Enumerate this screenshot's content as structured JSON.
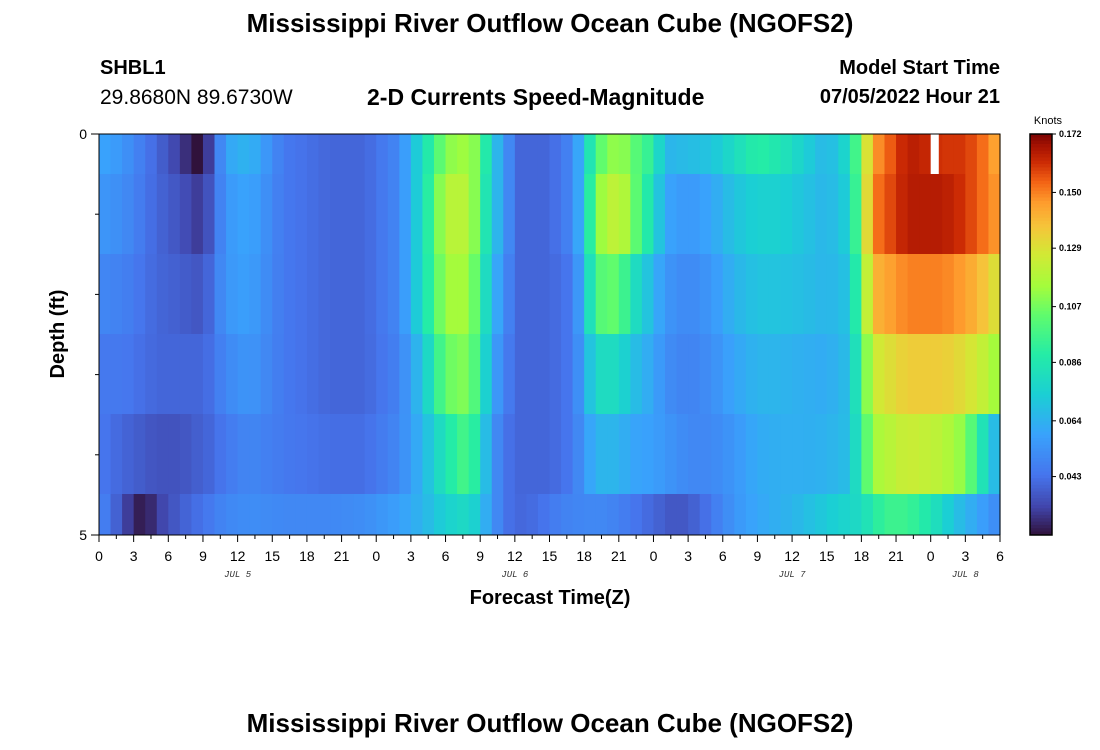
{
  "header": {
    "title": "Mississippi River Outflow Ocean Cube (NGOFS2)",
    "station_name": "SHBL1",
    "station_coords": "29.8680N  89.6730W",
    "subtitle": "2-D Currents Speed-Magnitude",
    "model_label": "Model Start Time",
    "model_datetime": "07/05/2022 Hour 21"
  },
  "footer": {
    "title": "Mississippi River Outflow Ocean Cube (NGOFS2)"
  },
  "colors": {
    "background": "#ffffff",
    "missing": "#ffffff",
    "axis": "#000000"
  },
  "chart_data": {
    "type": "heatmap",
    "title": "2-D Currents Speed-Magnitude",
    "xlabel": "Forecast Time(Z)",
    "ylabel": "Depth (ft)",
    "x_unit": "hours since JUL 5 00Z",
    "x_range": [
      0,
      78
    ],
    "y_range": [
      0,
      5
    ],
    "y_ticks": [
      "0",
      "5"
    ],
    "x_tick_labels": [
      "0",
      "3",
      "6",
      "9",
      "12",
      "15",
      "18",
      "21",
      "0",
      "3",
      "6",
      "9",
      "12",
      "15",
      "18",
      "21",
      "0",
      "3",
      "6",
      "9",
      "12",
      "15",
      "18",
      "21",
      "0",
      "3",
      "6"
    ],
    "day_labels": [
      {
        "label": "JUL 5",
        "hour": 12
      },
      {
        "label": "JUL 6",
        "hour": 36
      },
      {
        "label": "JUL 7",
        "hour": 60
      },
      {
        "label": "JUL 8",
        "hour": 75
      }
    ],
    "depth_layers": [
      "0-0.5",
      "0.5-1.5",
      "1.5-2.5",
      "2.5-3.5",
      "3.5-4.5",
      "4.5-5"
    ],
    "colorbar": {
      "unit": "Knots",
      "min": 0.021,
      "max": 0.172,
      "tick_labels": [
        "0.172",
        "0.150",
        "0.129",
        "0.107",
        "0.086",
        "0.064",
        "0.043"
      ]
    },
    "missing_value_note": "blank cell near JUL 8 00Z at surface",
    "speed_keyframes_by_layer": [
      {
        "layer": "0-0.5",
        "points": [
          [
            0,
            0.06
          ],
          [
            2,
            0.055
          ],
          [
            5,
            0.04
          ],
          [
            7,
            0.03
          ],
          [
            8.5,
            0.021
          ],
          [
            9.5,
            0.03
          ],
          [
            11,
            0.06
          ],
          [
            13,
            0.065
          ],
          [
            16,
            0.045
          ],
          [
            20,
            0.04
          ],
          [
            23,
            0.04
          ],
          [
            26,
            0.05
          ],
          [
            28,
            0.08
          ],
          [
            30,
            0.11
          ],
          [
            32,
            0.115
          ],
          [
            33,
            0.105
          ],
          [
            34,
            0.07
          ],
          [
            35,
            0.06
          ],
          [
            36,
            0.04
          ],
          [
            39,
            0.04
          ],
          [
            41,
            0.05
          ],
          [
            42,
            0.07
          ],
          [
            43,
            0.1
          ],
          [
            45,
            0.115
          ],
          [
            46,
            0.105
          ],
          [
            48,
            0.09
          ],
          [
            49,
            0.065
          ],
          [
            53,
            0.07
          ],
          [
            55,
            0.08
          ],
          [
            57,
            0.09
          ],
          [
            59,
            0.085
          ],
          [
            61,
            0.075
          ],
          [
            63,
            0.065
          ],
          [
            65,
            0.08
          ],
          [
            67,
            0.145
          ],
          [
            70,
            0.165
          ],
          [
            73,
            0.16
          ],
          [
            75,
            0.16
          ],
          [
            77,
            0.15
          ],
          [
            78,
            0.14
          ]
        ]
      },
      {
        "layer": "0.5-1.5",
        "points": [
          [
            0,
            0.055
          ],
          [
            2,
            0.052
          ],
          [
            5,
            0.04
          ],
          [
            7,
            0.035
          ],
          [
            8.5,
            0.03
          ],
          [
            9.5,
            0.035
          ],
          [
            11,
            0.055
          ],
          [
            13,
            0.06
          ],
          [
            16,
            0.045
          ],
          [
            20,
            0.04
          ],
          [
            23,
            0.04
          ],
          [
            26,
            0.05
          ],
          [
            28,
            0.08
          ],
          [
            30,
            0.12
          ],
          [
            32,
            0.12
          ],
          [
            33,
            0.1
          ],
          [
            34,
            0.07
          ],
          [
            35,
            0.06
          ],
          [
            36,
            0.04
          ],
          [
            39,
            0.04
          ],
          [
            41,
            0.05
          ],
          [
            42,
            0.07
          ],
          [
            43,
            0.11
          ],
          [
            45,
            0.125
          ],
          [
            46,
            0.11
          ],
          [
            48,
            0.08
          ],
          [
            49,
            0.06
          ],
          [
            51,
            0.055
          ],
          [
            53,
            0.06
          ],
          [
            55,
            0.07
          ],
          [
            57,
            0.075
          ],
          [
            59,
            0.075
          ],
          [
            61,
            0.07
          ],
          [
            63,
            0.065
          ],
          [
            65,
            0.075
          ],
          [
            67,
            0.15
          ],
          [
            70,
            0.165
          ],
          [
            73,
            0.165
          ],
          [
            75,
            0.16
          ],
          [
            77,
            0.15
          ],
          [
            78,
            0.145
          ]
        ]
      },
      {
        "layer": "1.5-2.5",
        "points": [
          [
            0,
            0.05
          ],
          [
            2,
            0.048
          ],
          [
            5,
            0.04
          ],
          [
            7,
            0.038
          ],
          [
            8.5,
            0.036
          ],
          [
            9.5,
            0.04
          ],
          [
            11,
            0.055
          ],
          [
            13,
            0.058
          ],
          [
            16,
            0.045
          ],
          [
            20,
            0.04
          ],
          [
            23,
            0.04
          ],
          [
            26,
            0.05
          ],
          [
            28,
            0.08
          ],
          [
            30,
            0.115
          ],
          [
            32,
            0.115
          ],
          [
            33,
            0.095
          ],
          [
            34,
            0.065
          ],
          [
            35,
            0.055
          ],
          [
            36,
            0.04
          ],
          [
            39,
            0.04
          ],
          [
            41,
            0.045
          ],
          [
            42,
            0.065
          ],
          [
            43,
            0.1
          ],
          [
            45,
            0.105
          ],
          [
            46,
            0.085
          ],
          [
            48,
            0.065
          ],
          [
            49,
            0.055
          ],
          [
            51,
            0.05
          ],
          [
            53,
            0.055
          ],
          [
            55,
            0.065
          ],
          [
            57,
            0.07
          ],
          [
            59,
            0.07
          ],
          [
            61,
            0.068
          ],
          [
            63,
            0.065
          ],
          [
            65,
            0.07
          ],
          [
            67,
            0.14
          ],
          [
            70,
            0.15
          ],
          [
            73,
            0.15
          ],
          [
            75,
            0.145
          ],
          [
            77,
            0.135
          ],
          [
            78,
            0.125
          ]
        ]
      },
      {
        "layer": "2.5-3.5",
        "points": [
          [
            0,
            0.045
          ],
          [
            2,
            0.045
          ],
          [
            5,
            0.04
          ],
          [
            7,
            0.04
          ],
          [
            8.5,
            0.04
          ],
          [
            9.5,
            0.042
          ],
          [
            11,
            0.05
          ],
          [
            13,
            0.055
          ],
          [
            16,
            0.045
          ],
          [
            20,
            0.04
          ],
          [
            23,
            0.04
          ],
          [
            26,
            0.048
          ],
          [
            28,
            0.07
          ],
          [
            30,
            0.105
          ],
          [
            32,
            0.11
          ],
          [
            33,
            0.09
          ],
          [
            34,
            0.06
          ],
          [
            35,
            0.05
          ],
          [
            36,
            0.04
          ],
          [
            39,
            0.04
          ],
          [
            41,
            0.045
          ],
          [
            42,
            0.06
          ],
          [
            43,
            0.08
          ],
          [
            45,
            0.08
          ],
          [
            46,
            0.07
          ],
          [
            48,
            0.06
          ],
          [
            49,
            0.052
          ],
          [
            51,
            0.048
          ],
          [
            53,
            0.052
          ],
          [
            55,
            0.06
          ],
          [
            57,
            0.065
          ],
          [
            59,
            0.065
          ],
          [
            61,
            0.063
          ],
          [
            63,
            0.062
          ],
          [
            65,
            0.068
          ],
          [
            67,
            0.125
          ],
          [
            70,
            0.135
          ],
          [
            73,
            0.135
          ],
          [
            75,
            0.13
          ],
          [
            77,
            0.12
          ],
          [
            78,
            0.11
          ]
        ]
      },
      {
        "layer": "3.5-4.5",
        "points": [
          [
            0,
            0.045
          ],
          [
            2,
            0.04
          ],
          [
            5,
            0.035
          ],
          [
            7,
            0.035
          ],
          [
            8.5,
            0.038
          ],
          [
            9.5,
            0.04
          ],
          [
            11,
            0.045
          ],
          [
            13,
            0.05
          ],
          [
            16,
            0.045
          ],
          [
            20,
            0.042
          ],
          [
            23,
            0.042
          ],
          [
            26,
            0.05
          ],
          [
            28,
            0.065
          ],
          [
            30,
            0.085
          ],
          [
            32,
            0.1
          ],
          [
            33,
            0.08
          ],
          [
            34,
            0.055
          ],
          [
            35,
            0.045
          ],
          [
            36,
            0.04
          ],
          [
            39,
            0.04
          ],
          [
            41,
            0.045
          ],
          [
            42,
            0.055
          ],
          [
            43,
            0.065
          ],
          [
            45,
            0.065
          ],
          [
            46,
            0.06
          ],
          [
            48,
            0.058
          ],
          [
            49,
            0.055
          ],
          [
            51,
            0.05
          ],
          [
            53,
            0.05
          ],
          [
            55,
            0.055
          ],
          [
            57,
            0.062
          ],
          [
            59,
            0.063
          ],
          [
            61,
            0.063
          ],
          [
            63,
            0.064
          ],
          [
            65,
            0.068
          ],
          [
            67,
            0.115
          ],
          [
            70,
            0.125
          ],
          [
            73,
            0.12
          ],
          [
            75,
            0.11
          ],
          [
            77,
            0.075
          ],
          [
            78,
            0.06
          ]
        ]
      },
      {
        "layer": "4.5-5",
        "points": [
          [
            0,
            0.05
          ],
          [
            2,
            0.035
          ],
          [
            3,
            0.025
          ],
          [
            4,
            0.022
          ],
          [
            5,
            0.03
          ],
          [
            7,
            0.038
          ],
          [
            9.5,
            0.045
          ],
          [
            11,
            0.05
          ],
          [
            13,
            0.052
          ],
          [
            16,
            0.05
          ],
          [
            20,
            0.05
          ],
          [
            23,
            0.052
          ],
          [
            26,
            0.058
          ],
          [
            28,
            0.065
          ],
          [
            30,
            0.075
          ],
          [
            32,
            0.08
          ],
          [
            33,
            0.07
          ],
          [
            34,
            0.055
          ],
          [
            35,
            0.045
          ],
          [
            36,
            0.04
          ],
          [
            38,
            0.042
          ],
          [
            40,
            0.048
          ],
          [
            42,
            0.05
          ],
          [
            44,
            0.05
          ],
          [
            46,
            0.045
          ],
          [
            48,
            0.04
          ],
          [
            50,
            0.035
          ],
          [
            52,
            0.04
          ],
          [
            54,
            0.05
          ],
          [
            56,
            0.058
          ],
          [
            58,
            0.062
          ],
          [
            60,
            0.065
          ],
          [
            62,
            0.07
          ],
          [
            64,
            0.075
          ],
          [
            66,
            0.08
          ],
          [
            68,
            0.095
          ],
          [
            70,
            0.095
          ],
          [
            72,
            0.085
          ],
          [
            74,
            0.07
          ],
          [
            76,
            0.06
          ],
          [
            78,
            0.05
          ]
        ]
      }
    ]
  }
}
